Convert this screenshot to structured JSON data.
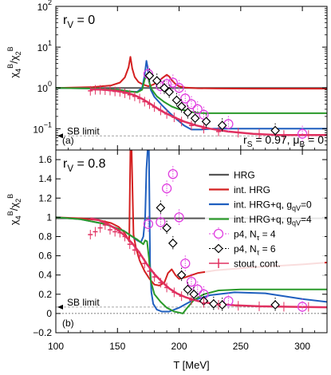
{
  "chart_data": [
    {
      "type": "line",
      "panel_label": "(a)",
      "annotation_top": "r_V = 0",
      "annotation_bottom": "r_S = 0.97, μ_B = 0",
      "sb_limit_label": "SB limit",
      "sb_limit_value": 0.0667,
      "ylabel": "χ4B/χ2B",
      "y_scale": "log",
      "ylim": [
        0.03,
        100
      ],
      "y_ticks": [
        {
          "value": 0.1,
          "base": "10",
          "exp": "−1"
        },
        {
          "value": 1,
          "base": "10",
          "exp": "0"
        },
        {
          "value": 10,
          "base": "10",
          "exp": "1"
        },
        {
          "value": 100,
          "base": "10",
          "exp": "2"
        }
      ],
      "x_range": [
        100,
        320
      ],
      "series": [
        {
          "key": "hrg",
          "color": "#555555",
          "width": 2,
          "x": [
            100,
            320
          ],
          "y": [
            1.0,
            1.0
          ]
        },
        {
          "key": "int_hrg",
          "color": "#d42020",
          "width": 2,
          "x": [
            100,
            130,
            145,
            152,
            156,
            159,
            160.5,
            162,
            164,
            167,
            171,
            175,
            179,
            183,
            187,
            190,
            192,
            194,
            197,
            200,
            205,
            215,
            230,
            260,
            300,
            320
          ],
          "y": [
            1.0,
            1.05,
            1.15,
            1.35,
            1.8,
            3.2,
            5.8,
            3.0,
            1.85,
            1.4,
            1.2,
            1.1,
            1.2,
            1.45,
            1.8,
            2.1,
            1.9,
            1.55,
            1.25,
            1.1,
            1.02,
            0.98,
            0.97,
            0.96,
            0.96,
            0.96
          ]
        },
        {
          "key": "int_hrg_q0",
          "color": "#1f5fbf",
          "width": 2,
          "x": [
            100,
            130,
            150,
            160,
            166,
            170,
            172,
            173.5,
            174.5,
            175.5,
            177,
            180,
            186,
            192,
            198,
            204,
            210,
            218,
            228,
            240,
            260,
            290,
            320
          ],
          "y": [
            1.0,
            0.97,
            0.9,
            0.82,
            0.8,
            1.0,
            2.0,
            4.6,
            3.2,
            1.6,
            0.9,
            0.6,
            0.38,
            0.25,
            0.17,
            0.12,
            0.095,
            0.095,
            0.1,
            0.1,
            0.1,
            0.1,
            0.1
          ]
        },
        {
          "key": "int_hrg_q4",
          "color": "#2a9a2a",
          "width": 2,
          "x": [
            100,
            130,
            150,
            160,
            166,
            170,
            172,
            174,
            176,
            178,
            182,
            188,
            194,
            200,
            205,
            212,
            220,
            232,
            250,
            280,
            320
          ],
          "y": [
            1.0,
            0.97,
            0.9,
            0.82,
            0.78,
            0.9,
            1.6,
            2.2,
            1.3,
            0.9,
            0.62,
            0.45,
            0.35,
            0.3,
            0.28,
            0.25,
            0.24,
            0.24,
            0.24,
            0.24,
            0.24
          ]
        },
        {
          "key": "stout_curve",
          "color": "#e03060",
          "width": 2.5,
          "x": [
            128,
            140,
            150,
            158,
            164,
            170,
            176,
            182,
            188,
            196,
            204,
            214,
            225,
            240,
            260,
            280,
            300,
            320
          ],
          "y": [
            0.93,
            0.9,
            0.84,
            0.76,
            0.66,
            0.54,
            0.42,
            0.32,
            0.25,
            0.19,
            0.15,
            0.12,
            0.1,
            0.085,
            0.075,
            0.07,
            0.07,
            0.07
          ]
        }
      ],
      "points": [
        {
          "key": "p4",
          "marker": "circle",
          "color": "#e040e0",
          "x": [
            175,
            185,
            190,
            195,
            200,
            205,
            210,
            215,
            220,
            240,
            300
          ],
          "y": [
            2.2,
            1.1,
            1.25,
            1.35,
            1.0,
            0.55,
            0.4,
            0.3,
            0.22,
            0.13,
            0.075
          ]
        },
        {
          "key": "p4_6",
          "marker": "diamond",
          "color": "#000000",
          "x": [
            176,
            182,
            188,
            192,
            198,
            202,
            207,
            213,
            222,
            235,
            278
          ],
          "y": [
            2.0,
            1.5,
            1.0,
            0.8,
            0.5,
            0.35,
            0.25,
            0.18,
            0.15,
            0.12,
            0.09
          ]
        },
        {
          "key": "stout",
          "marker": "plus",
          "color": "#e03060",
          "x": [
            128,
            132,
            136,
            140,
            144,
            148,
            152,
            156,
            160,
            164,
            168,
            172,
            176,
            180,
            185,
            190,
            196,
            202,
            210,
            220,
            232,
            248,
            265,
            285,
            305,
            320
          ],
          "y": [
            0.85,
            0.9,
            0.9,
            0.88,
            0.86,
            0.82,
            0.8,
            0.74,
            0.68,
            0.62,
            0.55,
            0.46,
            0.4,
            0.34,
            0.28,
            0.23,
            0.19,
            0.15,
            0.12,
            0.1,
            0.085,
            0.08,
            0.075,
            0.07,
            0.07,
            0.07
          ]
        }
      ]
    },
    {
      "type": "line",
      "panel_label": "(b)",
      "annotation_top": "r_V = 0.8",
      "sb_limit_label": "SB limit",
      "sb_limit_value": 0.0667,
      "ylabel": "χ4B/χ2B",
      "y_scale": "linear",
      "ylim": [
        -0.2,
        1.7
      ],
      "y_ticks": [
        {
          "value": -0.2,
          "label": "−0.2"
        },
        {
          "value": 0,
          "label": "0"
        },
        {
          "value": 0.2,
          "label": "0.2"
        },
        {
          "value": 0.4,
          "label": "0.4"
        },
        {
          "value": 0.6,
          "label": "0.6"
        },
        {
          "value": 0.8,
          "label": "0.8"
        },
        {
          "value": 1,
          "label": "1"
        },
        {
          "value": 1.2,
          "label": "1.2"
        },
        {
          "value": 1.4,
          "label": "1.4"
        },
        {
          "value": 1.6,
          "label": "1.6"
        }
      ],
      "xlabel": "T [MeV]",
      "x_range": [
        100,
        320
      ],
      "x_ticks": [
        100,
        150,
        200,
        250,
        300
      ],
      "series": [
        {
          "key": "hrg",
          "color": "#555555",
          "width": 2,
          "x": [
            100,
            320
          ],
          "y": [
            0.99,
            0.99
          ]
        },
        {
          "key": "int_hrg",
          "color": "#d42020",
          "width": 2,
          "x": [
            100,
            120,
            135,
            145,
            151,
            155,
            158,
            159.5,
            160.5,
            161.5,
            163,
            165,
            168,
            172,
            176,
            180,
            184,
            188,
            191,
            194,
            197,
            200,
            206,
            215,
            230,
            260,
            300,
            320
          ],
          "y": [
            1.0,
            0.99,
            0.97,
            0.94,
            0.9,
            0.85,
            0.79,
            0.75,
            1.7,
            1.7,
            0.82,
            0.68,
            0.55,
            0.44,
            0.36,
            0.3,
            0.29,
            0.32,
            0.42,
            0.46,
            0.4,
            0.36,
            0.38,
            0.42,
            0.45,
            0.48,
            0.51,
            0.53
          ]
        },
        {
          "key": "int_hrg_q0",
          "color": "#1f5fbf",
          "width": 2,
          "x": [
            100,
            120,
            140,
            155,
            162,
            166,
            169,
            171,
            172.5,
            173.5,
            174.5,
            175.5,
            176.5,
            177.5,
            179,
            182,
            186,
            192,
            200,
            210,
            225,
            245,
            270,
            300,
            320
          ],
          "y": [
            1.0,
            0.98,
            0.93,
            0.86,
            0.8,
            0.76,
            0.74,
            0.8,
            1.0,
            1.5,
            1.7,
            1.7,
            0.5,
            0.22,
            0.1,
            0.04,
            0.02,
            0.02,
            0.06,
            0.13,
            0.19,
            0.22,
            0.21,
            0.15,
            0.12
          ]
        },
        {
          "key": "int_hrg_q4",
          "color": "#2a9a2a",
          "width": 2,
          "x": [
            100,
            120,
            140,
            155,
            162,
            166,
            169,
            171,
            172.5,
            174,
            175.5,
            177,
            180,
            185,
            190,
            196,
            200,
            203,
            206,
            212,
            220,
            232,
            250,
            280,
            320
          ],
          "y": [
            1.0,
            0.98,
            0.93,
            0.86,
            0.8,
            0.77,
            0.74,
            0.72,
            0.76,
            0.75,
            0.58,
            0.34,
            0.2,
            0.12,
            0.06,
            0.02,
            0.01,
            0.0,
            0.05,
            0.14,
            0.2,
            0.24,
            0.25,
            0.25,
            0.25
          ]
        },
        {
          "key": "stout_curve",
          "color": "#e03060",
          "width": 2.5,
          "x": [
            128,
            135,
            142,
            150,
            156,
            162,
            168,
            174,
            180,
            186,
            192,
            198,
            205,
            215,
            228,
            245,
            265,
            290,
            320
          ],
          "y": [
            0.99,
            0.97,
            0.93,
            0.87,
            0.81,
            0.73,
            0.63,
            0.51,
            0.41,
            0.33,
            0.26,
            0.21,
            0.17,
            0.13,
            0.1,
            0.085,
            0.075,
            0.07,
            0.065
          ]
        }
      ],
      "points": [
        {
          "key": "p4",
          "marker": "circle",
          "color": "#e040e0",
          "x": [
            175,
            185,
            190,
            195,
            200,
            205,
            210,
            215,
            220,
            240,
            300
          ],
          "y": [
            0.93,
            0.95,
            1.3,
            1.45,
            1.0,
            0.52,
            0.33,
            0.25,
            0.2,
            0.13,
            0.07
          ]
        },
        {
          "key": "p4_6",
          "marker": "diamond",
          "color": "#000000",
          "x": [
            185,
            190,
            195,
            202,
            207,
            212,
            220,
            228,
            235,
            278
          ],
          "y": [
            1.1,
            0.89,
            0.73,
            0.4,
            0.25,
            0.2,
            0.13,
            0.1,
            0.09,
            0.09
          ]
        },
        {
          "key": "stout",
          "marker": "plus",
          "color": "#e03060",
          "x": [
            128,
            132,
            136,
            140,
            144,
            148,
            152,
            156,
            160,
            164,
            168,
            172,
            176,
            180,
            185,
            190,
            196,
            202,
            210,
            220,
            232,
            248,
            265,
            285,
            305,
            320
          ],
          "y": [
            0.82,
            0.85,
            0.89,
            0.92,
            0.87,
            0.85,
            0.84,
            0.8,
            0.72,
            0.66,
            0.6,
            0.52,
            0.44,
            0.38,
            0.32,
            0.27,
            0.22,
            0.18,
            0.14,
            0.11,
            0.09,
            0.08,
            0.075,
            0.07,
            0.068,
            0.065
          ]
        }
      ]
    }
  ],
  "legend": {
    "entries": [
      {
        "key": "hrg",
        "label": "HRG",
        "color": "#555555",
        "marker": "line"
      },
      {
        "key": "int_hrg",
        "label": "int. HRG",
        "color": "#d42020",
        "marker": "line"
      },
      {
        "key": "int_hrg_q0",
        "label": "int. HRG+q, g_qV=0",
        "color": "#1f5fbf",
        "marker": "line"
      },
      {
        "key": "int_hrg_q4",
        "label": "int. HRG+q, g_qV=4",
        "color": "#2a9a2a",
        "marker": "line"
      },
      {
        "key": "p4",
        "label": "p4, N_τ = 4",
        "color": "#e040e0",
        "marker": "circle"
      },
      {
        "key": "p4_6",
        "label": "p4, N_τ = 6",
        "color": "#000000",
        "marker": "diamond"
      },
      {
        "key": "stout",
        "label": "stout, cont.",
        "color": "#e03060",
        "marker": "plus"
      }
    ]
  }
}
